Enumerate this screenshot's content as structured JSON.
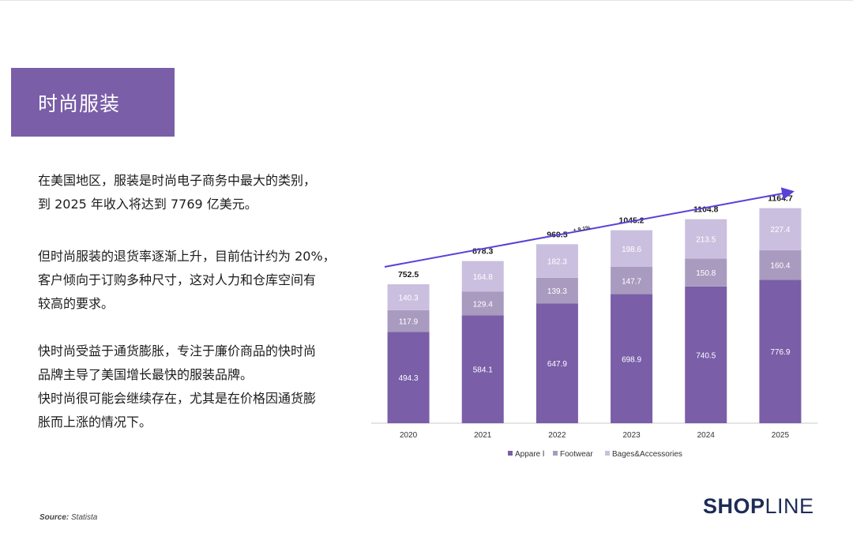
{
  "title": "时尚服装",
  "paragraphs": [
    [
      "在美国地区，服装是时尚电子商务中最大的类别，",
      "到 2025 年收入将达到 7769 亿美元。"
    ],
    [
      "但时尚服装的退货率逐渐上升，目前估计约为 20%，",
      "客户倾向于订购多种尺寸，这对人力和仓库空间有",
      "较高的要求。"
    ],
    [
      "快时尚受益于通货膨胀，专注于廉价商品的快时尚",
      "品牌主导了美国增长最快的服装品牌。",
      "快时尚很可能会继续存在，尤其是在价格因通货膨",
      "胀而上涨的情况下。"
    ]
  ],
  "source": {
    "label": "Source:",
    "value": "Statista"
  },
  "logo": {
    "part1": "SHOP",
    "part2": "LINE"
  },
  "colors": {
    "brand": "#7a5ea8",
    "apparel": "#7a5ea8",
    "footwear": "#a99bbf",
    "accessories": "#cbbfdf",
    "trend": "#5b3fd9",
    "logo": "#1d2c55"
  },
  "chart_data": {
    "type": "bar",
    "stacked": true,
    "categories": [
      "2020",
      "2021",
      "2022",
      "2023",
      "2024",
      "2025"
    ],
    "series": [
      {
        "name": "Apparel",
        "values": [
          494.3,
          584.1,
          647.9,
          698.9,
          740.5,
          776.9
        ]
      },
      {
        "name": "Footwear",
        "values": [
          117.9,
          129.4,
          139.3,
          147.7,
          150.8,
          160.4
        ]
      },
      {
        "name": "Bages&Accessories",
        "values": [
          140.3,
          164.8,
          182.3,
          198.6,
          213.5,
          227.4
        ]
      }
    ],
    "totals": [
      752.5,
      878.3,
      969.5,
      1045.2,
      1104.8,
      1164.7
    ],
    "legend_labels": [
      "Appare l",
      "Footwear",
      "Bages&Accessories"
    ],
    "annotation": "+ 9.1%",
    "legend_position": "bottom",
    "grid": false,
    "ylim": [
      0,
      1270
    ]
  }
}
